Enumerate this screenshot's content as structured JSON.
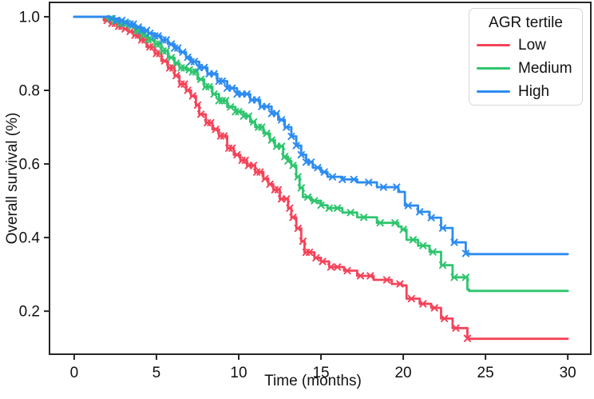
{
  "chart_data": {
    "type": "line",
    "subtype": "kaplan-meier-step",
    "title": "",
    "xlabel": "Time (months)",
    "ylabel": "Overall survival (%)",
    "xlim": [
      -1.5,
      31.4
    ],
    "ylim": [
      0.083,
      1.039
    ],
    "xticks": [
      0,
      5,
      10,
      15,
      20,
      25,
      30
    ],
    "yticks": [
      0.2,
      0.4,
      0.6,
      0.8,
      1.0
    ],
    "grid": false,
    "legend": {
      "title": "AGR tertile",
      "position": "upper right",
      "entries": [
        "Low",
        "Medium",
        "High"
      ]
    },
    "colors": {
      "low": "#f4445a",
      "medium": "#2ec56e",
      "high": "#2d8cf0",
      "text": "#111111",
      "spine": "#262626",
      "legend_border": "#d6d6d6"
    },
    "series": [
      {
        "name": "Low",
        "color": "#f4445a",
        "points": [
          [
            0,
            1.0
          ],
          [
            1.6,
            1.0
          ],
          [
            1.8,
            0.99
          ],
          [
            2.2,
            0.982
          ],
          [
            2.6,
            0.974
          ],
          [
            3.0,
            0.967
          ],
          [
            3.3,
            0.96
          ],
          [
            3.6,
            0.95
          ],
          [
            4.0,
            0.937
          ],
          [
            4.4,
            0.918
          ],
          [
            4.9,
            0.9
          ],
          [
            5.3,
            0.88
          ],
          [
            5.7,
            0.861
          ],
          [
            6.1,
            0.84
          ],
          [
            6.4,
            0.817
          ],
          [
            6.8,
            0.8
          ],
          [
            7.1,
            0.785
          ],
          [
            7.4,
            0.76
          ],
          [
            7.6,
            0.735
          ],
          [
            8.0,
            0.712
          ],
          [
            8.4,
            0.694
          ],
          [
            8.8,
            0.676
          ],
          [
            9.3,
            0.643
          ],
          [
            9.7,
            0.625
          ],
          [
            10.1,
            0.61
          ],
          [
            10.5,
            0.596
          ],
          [
            11.0,
            0.578
          ],
          [
            11.5,
            0.56
          ],
          [
            11.8,
            0.545
          ],
          [
            12.1,
            0.53
          ],
          [
            12.5,
            0.505
          ],
          [
            13.0,
            0.48
          ],
          [
            13.2,
            0.455
          ],
          [
            13.5,
            0.425
          ],
          [
            13.8,
            0.39
          ],
          [
            14.0,
            0.36
          ],
          [
            14.6,
            0.345
          ],
          [
            15.0,
            0.335
          ],
          [
            15.5,
            0.32
          ],
          [
            16.4,
            0.31
          ],
          [
            17.2,
            0.296
          ],
          [
            18.2,
            0.285
          ],
          [
            19.3,
            0.274
          ],
          [
            19.9,
            0.27
          ],
          [
            20.2,
            0.234
          ],
          [
            21.0,
            0.22
          ],
          [
            21.7,
            0.209
          ],
          [
            22.3,
            0.18
          ],
          [
            23.0,
            0.154
          ],
          [
            23.9,
            0.126
          ],
          [
            24.0,
            0.125
          ],
          [
            30,
            0.125
          ]
        ],
        "censor_times": [
          2.0,
          2.3,
          2.5,
          2.7,
          2.9,
          3.1,
          3.4,
          3.7,
          3.9,
          4.1,
          4.3,
          4.6,
          4.8,
          5.0,
          5.2,
          5.5,
          5.8,
          6.0,
          6.2,
          6.5,
          6.7,
          6.9,
          7.2,
          7.5,
          7.7,
          8.1,
          8.3,
          8.6,
          8.9,
          9.1,
          9.4,
          9.6,
          9.9,
          10.2,
          10.4,
          10.6,
          10.9,
          11.1,
          11.3,
          11.6,
          11.9,
          12.2,
          12.4,
          12.6,
          12.9,
          13.1,
          13.3,
          13.6,
          13.9,
          14.1,
          14.3,
          14.7,
          15.1,
          15.6,
          16.0,
          16.6,
          17.4,
          18.0,
          19.0,
          19.8,
          20.5,
          21.2,
          21.9,
          22.5,
          23.2,
          23.9
        ]
      },
      {
        "name": "Medium",
        "color": "#2ec56e",
        "points": [
          [
            0,
            1.0
          ],
          [
            1.8,
            1.0
          ],
          [
            2.0,
            0.995
          ],
          [
            2.4,
            0.989
          ],
          [
            2.8,
            0.982
          ],
          [
            3.3,
            0.974
          ],
          [
            3.7,
            0.962
          ],
          [
            4.1,
            0.95
          ],
          [
            4.5,
            0.938
          ],
          [
            4.9,
            0.926
          ],
          [
            5.3,
            0.907
          ],
          [
            5.7,
            0.889
          ],
          [
            6.1,
            0.874
          ],
          [
            6.4,
            0.861
          ],
          [
            6.8,
            0.856
          ],
          [
            7.1,
            0.85
          ],
          [
            7.5,
            0.83
          ],
          [
            7.9,
            0.81
          ],
          [
            8.4,
            0.79
          ],
          [
            8.8,
            0.772
          ],
          [
            9.3,
            0.755
          ],
          [
            9.8,
            0.742
          ],
          [
            10.3,
            0.73
          ],
          [
            10.7,
            0.714
          ],
          [
            11.0,
            0.7
          ],
          [
            11.5,
            0.683
          ],
          [
            11.9,
            0.665
          ],
          [
            12.2,
            0.648
          ],
          [
            12.7,
            0.62
          ],
          [
            13.0,
            0.608
          ],
          [
            13.2,
            0.596
          ],
          [
            13.5,
            0.565
          ],
          [
            13.7,
            0.535
          ],
          [
            13.9,
            0.51
          ],
          [
            14.4,
            0.5
          ],
          [
            15.0,
            0.488
          ],
          [
            15.4,
            0.48
          ],
          [
            16.3,
            0.468
          ],
          [
            17.2,
            0.455
          ],
          [
            18.4,
            0.44
          ],
          [
            19.7,
            0.43
          ],
          [
            19.9,
            0.422
          ],
          [
            20.2,
            0.394
          ],
          [
            20.9,
            0.378
          ],
          [
            21.6,
            0.361
          ],
          [
            22.3,
            0.325
          ],
          [
            23.0,
            0.292
          ],
          [
            23.9,
            0.259
          ],
          [
            24.0,
            0.255
          ],
          [
            30,
            0.255
          ]
        ],
        "censor_times": [
          2.2,
          2.5,
          2.8,
          3.0,
          3.2,
          3.5,
          3.8,
          4.0,
          4.2,
          4.5,
          4.7,
          5.0,
          5.2,
          5.4,
          5.6,
          5.9,
          6.2,
          6.5,
          6.7,
          7.0,
          7.2,
          7.4,
          7.7,
          8.0,
          8.2,
          8.5,
          8.8,
          9.0,
          9.2,
          9.5,
          9.8,
          10.0,
          10.3,
          10.6,
          10.9,
          11.2,
          11.4,
          11.7,
          12.0,
          12.3,
          12.6,
          12.8,
          13.0,
          13.3,
          13.6,
          13.8,
          14.2,
          14.6,
          15.0,
          15.5,
          16.0,
          16.8,
          17.6,
          18.6,
          19.5,
          20.0,
          20.6,
          21.2,
          21.8,
          22.4,
          23.1,
          23.8
        ]
      },
      {
        "name": "High",
        "color": "#2d8cf0",
        "points": [
          [
            0,
            1.0
          ],
          [
            2.0,
            1.0
          ],
          [
            2.2,
            0.995
          ],
          [
            2.6,
            0.99
          ],
          [
            3.0,
            0.985
          ],
          [
            3.3,
            0.98
          ],
          [
            3.7,
            0.972
          ],
          [
            4.1,
            0.963
          ],
          [
            4.5,
            0.955
          ],
          [
            4.9,
            0.948
          ],
          [
            5.3,
            0.937
          ],
          [
            5.7,
            0.926
          ],
          [
            6.1,
            0.915
          ],
          [
            6.4,
            0.904
          ],
          [
            6.8,
            0.89
          ],
          [
            7.1,
            0.878
          ],
          [
            7.6,
            0.862
          ],
          [
            8.1,
            0.845
          ],
          [
            8.7,
            0.825
          ],
          [
            9.3,
            0.806
          ],
          [
            9.9,
            0.79
          ],
          [
            10.7,
            0.774
          ],
          [
            11.3,
            0.756
          ],
          [
            12.0,
            0.737
          ],
          [
            12.4,
            0.72
          ],
          [
            12.8,
            0.7
          ],
          [
            13.2,
            0.675
          ],
          [
            13.5,
            0.65
          ],
          [
            13.8,
            0.625
          ],
          [
            14.1,
            0.605
          ],
          [
            14.5,
            0.59
          ],
          [
            15.0,
            0.578
          ],
          [
            15.4,
            0.565
          ],
          [
            16.3,
            0.558
          ],
          [
            17.2,
            0.55
          ],
          [
            18.4,
            0.537
          ],
          [
            19.7,
            0.524
          ],
          [
            20.1,
            0.487
          ],
          [
            20.9,
            0.47
          ],
          [
            21.6,
            0.454
          ],
          [
            22.3,
            0.426
          ],
          [
            23.0,
            0.387
          ],
          [
            23.8,
            0.357
          ],
          [
            24.0,
            0.355
          ],
          [
            30,
            0.355
          ]
        ],
        "censor_times": [
          2.3,
          2.6,
          2.9,
          3.1,
          3.4,
          3.6,
          3.9,
          4.1,
          4.4,
          4.6,
          4.9,
          5.1,
          5.4,
          5.6,
          5.9,
          6.1,
          6.3,
          6.6,
          6.9,
          7.1,
          7.3,
          7.6,
          7.9,
          8.2,
          8.5,
          8.8,
          9.0,
          9.3,
          9.6,
          9.9,
          10.2,
          10.5,
          10.8,
          11.1,
          11.4,
          11.7,
          12.0,
          12.3,
          12.6,
          12.9,
          13.2,
          13.5,
          13.8,
          14.1,
          14.4,
          14.8,
          15.2,
          15.7,
          16.3,
          17.0,
          17.9,
          18.8,
          19.6,
          20.3,
          21.0,
          21.7,
          22.4,
          23.1,
          23.8
        ]
      }
    ]
  }
}
